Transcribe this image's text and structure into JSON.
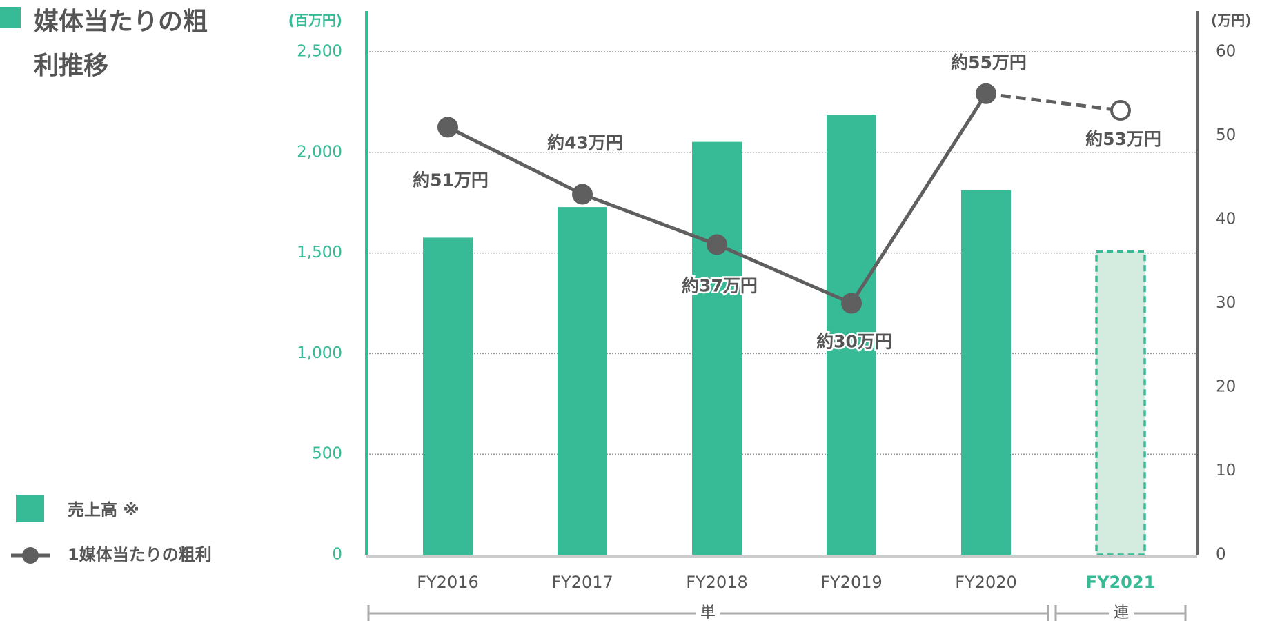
{
  "chart_data": {
    "type": "bar_line",
    "title": "媒体当たりの粗利推移",
    "y_axis_label": "(百万円)",
    "y2_axis_label": "(万円)",
    "categories": [
      "FY2016",
      "FY2017",
      "FY2018",
      "FY2019",
      "FY2020",
      "FY2021"
    ],
    "series": [
      {
        "name": "売上高 ※",
        "type": "bar",
        "color": "#36bb96",
        "values": [
          1576,
          1728,
          2052,
          2188,
          1812,
          1508
        ]
      },
      {
        "name": "1媒体当たりの粗利",
        "type": "line",
        "axis": "y2",
        "color": "#5f5f5f",
        "values": [
          51,
          43,
          37,
          30,
          55,
          53
        ],
        "value_labels": [
          "約51万円",
          "約43万円",
          "約37万円",
          "約30万円",
          "約55万円",
          "約53万円"
        ]
      }
    ],
    "ylim": [
      0,
      2500
    ],
    "yticks": [
      0,
      500,
      {
        "value": 1000,
        "label": "1,000"
      },
      {
        "value": 1500,
        "label": "1,500"
      },
      {
        "value": 2000,
        "label": "2,000"
      },
      {
        "value": 2500,
        "label": "2,500"
      }
    ],
    "y2lim": [
      0,
      60
    ],
    "y2ticks": [
      0,
      10,
      20,
      30,
      40,
      50,
      60
    ],
    "grid": true,
    "period_labels": [
      "単",
      "連"
    ]
  }
}
